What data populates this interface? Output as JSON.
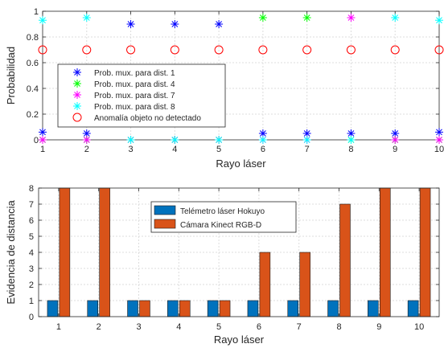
{
  "chart_data": [
    {
      "type": "scatter",
      "xlabel": "Rayo láser",
      "ylabel": "Probabilidad",
      "xlim": [
        1,
        10
      ],
      "ylim": [
        0,
        1
      ],
      "xticks": [
        "1",
        "2",
        "3",
        "4",
        "5",
        "6",
        "7",
        "8",
        "9",
        "10"
      ],
      "yticks": [
        "0",
        "0.2",
        "0.4",
        "0.6",
        "0.8",
        "1"
      ],
      "grid": true,
      "legend_position": "bottom-left",
      "series": [
        {
          "name": "Prob. mux. para dist. 1",
          "marker": "asterisk",
          "color": "#0000ff",
          "x": [
            1,
            2,
            3,
            4,
            5,
            6,
            7,
            8,
            9,
            10
          ],
          "y": [
            0.06,
            0.05,
            0.9,
            0.9,
            0.9,
            0.05,
            0.05,
            0.05,
            0.05,
            0.06
          ]
        },
        {
          "name": "Prob. mux. para dist. 4",
          "marker": "asterisk",
          "color": "#00ff00",
          "x": [
            1,
            2,
            3,
            4,
            5,
            6,
            7,
            8,
            9,
            10
          ],
          "y": [
            0,
            0,
            0,
            0,
            0,
            0.95,
            0.95,
            0,
            0,
            0
          ]
        },
        {
          "name": "Prob. mux. para dist. 7",
          "marker": "asterisk",
          "color": "#ff00ff",
          "x": [
            1,
            2,
            3,
            4,
            5,
            6,
            7,
            8,
            9,
            10
          ],
          "y": [
            0,
            0,
            0,
            0,
            0,
            0,
            0,
            0.95,
            0,
            0
          ]
        },
        {
          "name": "Prob. mux. para dist. 8",
          "marker": "asterisk",
          "color": "#00ffff",
          "x": [
            1,
            2,
            3,
            4,
            5,
            6,
            7,
            8,
            9,
            10
          ],
          "y": [
            0.93,
            0.95,
            0,
            0,
            0,
            0,
            0,
            0,
            0.95,
            0.93
          ]
        },
        {
          "name": "Anomalía objeto no detectado",
          "marker": "circle",
          "color": "#ff0000",
          "x": [
            1,
            2,
            3,
            4,
            5,
            6,
            7,
            8,
            9,
            10
          ],
          "y": [
            0.7,
            0.7,
            0.7,
            0.7,
            0.7,
            0.7,
            0.7,
            0.7,
            0.7,
            0.7
          ]
        }
      ]
    },
    {
      "type": "bar",
      "xlabel": "Rayo láser",
      "ylabel": "Evidencia de distancia",
      "categories": [
        "1",
        "2",
        "3",
        "4",
        "5",
        "6",
        "7",
        "8",
        "9",
        "10"
      ],
      "ylim": [
        0,
        8
      ],
      "yticks": [
        "0",
        "1",
        "2",
        "3",
        "4",
        "5",
        "6",
        "7",
        "8"
      ],
      "grid": true,
      "legend_position": "top-center",
      "series": [
        {
          "name": "Telémetro láser Hokuyo",
          "color": "#0072bd",
          "values": [
            1,
            1,
            1,
            1,
            1,
            1,
            1,
            1,
            1,
            1
          ]
        },
        {
          "name": "Cámara Kinect RGB-D",
          "color": "#d95319",
          "values": [
            8,
            8,
            1,
            1,
            1,
            4,
            4,
            7,
            8,
            8
          ]
        }
      ]
    }
  ]
}
